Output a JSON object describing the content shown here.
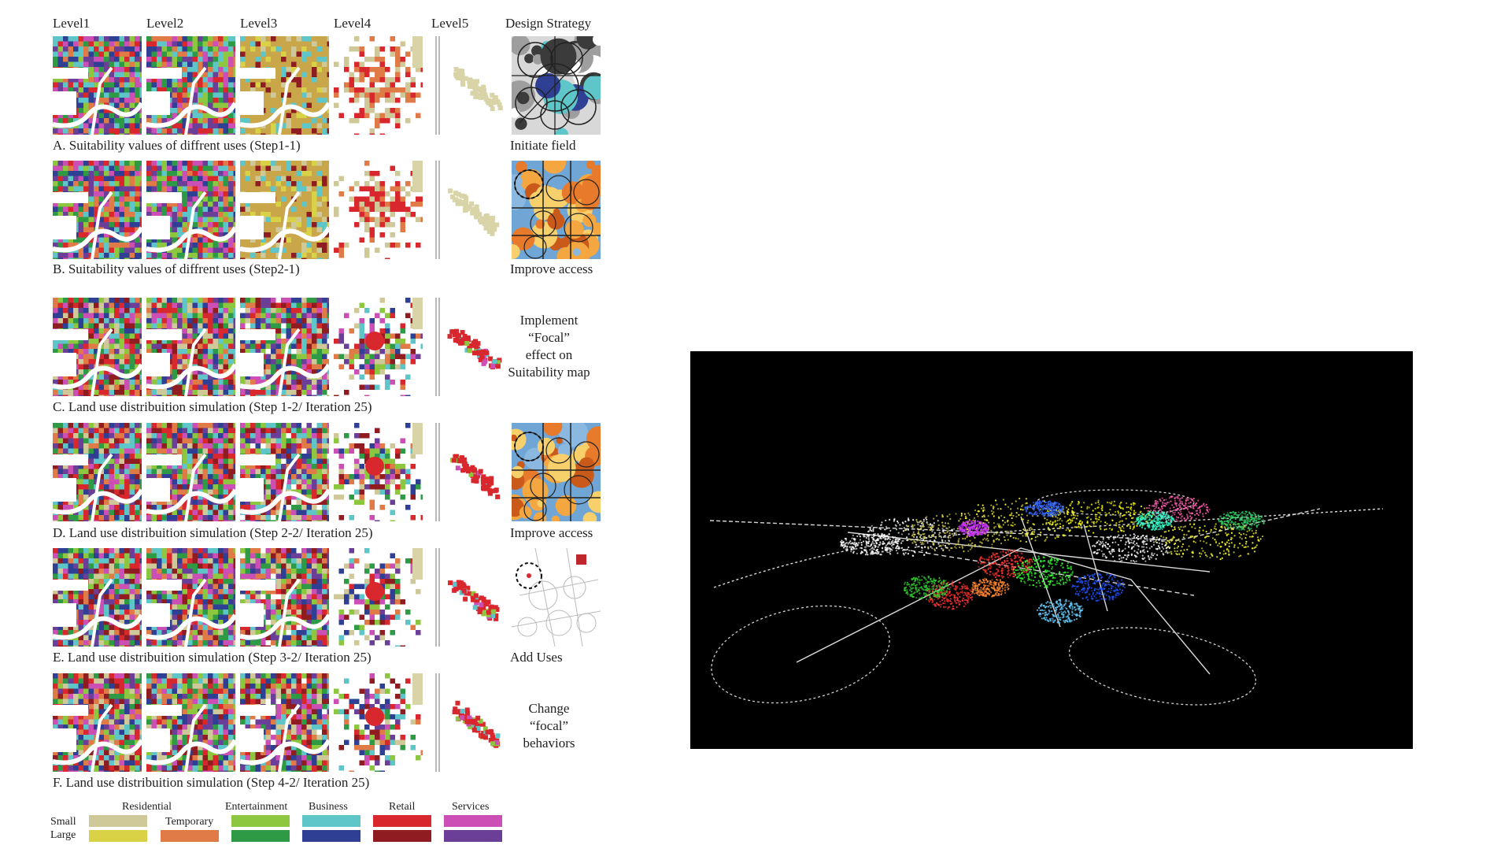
{
  "headers": [
    "Level1",
    "Level2",
    "Level3",
    "Level4",
    "Level5",
    "Design Strategy"
  ],
  "rows": [
    {
      "caption": "A. Suitability values of diffrent uses (Step1-1)",
      "strategy": [
        "Initiate field"
      ],
      "strategy_type": "field"
    },
    {
      "caption": "B. Suitability values of diffrent uses (Step2-1)",
      "strategy": [
        "Improve access"
      ],
      "strategy_type": "access"
    },
    {
      "caption": "C. Land use distribuition simulation (Step 1-2/ Iteration 25)",
      "strategy": [
        "Implement",
        "“Focal”",
        "effect on",
        "Suitability map"
      ],
      "strategy_type": "text"
    },
    {
      "caption": "D. Land use distribuition simulation (Step 2-2/ Iteration 25)",
      "strategy": [
        "Improve access"
      ],
      "strategy_type": "access"
    },
    {
      "caption": "E. Land use distribuition simulation (Step 3-2/ Iteration 25)",
      "strategy": [
        "Add Uses"
      ],
      "strategy_type": "uses"
    },
    {
      "caption": "F. Land use distribuition simulation (Step 4-2/ Iteration 25)",
      "strategy": [
        "Change",
        "“focal”",
        "behaviors"
      ],
      "strategy_type": "text"
    }
  ],
  "legend": {
    "size_labels": [
      "Small",
      "Large"
    ],
    "categories": [
      {
        "name": "Residential",
        "small": "#cfc99a",
        "large": "#d9d247"
      },
      {
        "name": "Temporary",
        "small": null,
        "large": "#e07a47"
      },
      {
        "name": "Entertainment",
        "small": "#8dc63f",
        "large": "#2f9a45"
      },
      {
        "name": "Business",
        "small": "#5ec5c8",
        "large": "#2e3f94"
      },
      {
        "name": "Retail",
        "small": "#d9272e",
        "large": "#8e1c20"
      },
      {
        "name": "Services",
        "small": "#cc4fb6",
        "large": "#6b3f98"
      }
    ]
  },
  "photo": {
    "background": "#000000"
  }
}
